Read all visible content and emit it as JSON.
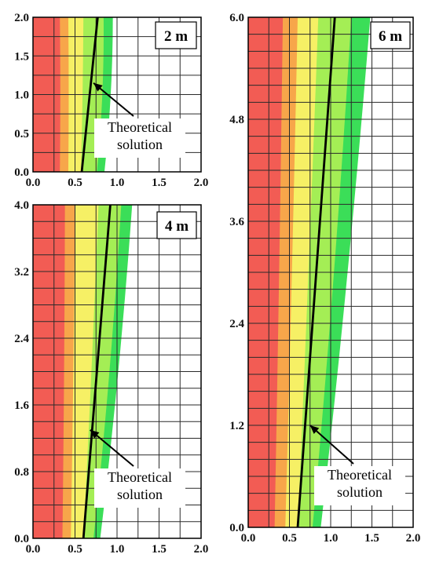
{
  "colors": {
    "red": "#f25c54",
    "orange": "#f7a64a",
    "yellow": "#f6f065",
    "lightgreen": "#a4ee55",
    "green": "#3bde58",
    "grid": "#2a2a2a",
    "line": "#000000"
  },
  "chart_data": [
    {
      "type": "heatmap",
      "title": "2 m",
      "xlabel": "",
      "ylabel": "",
      "xlim": [
        0,
        2.0
      ],
      "ylim": [
        0,
        2.0
      ],
      "xticks": [
        "0.0",
        "0.5",
        "1.0",
        "1.5",
        "2.0"
      ],
      "yticks": [
        "0.0",
        "0.5",
        "1.0",
        "1.5",
        "2.0"
      ],
      "grid": true,
      "contour_bands_x_at_bottom": [
        0.32,
        0.42,
        0.57,
        0.76,
        0.85
      ],
      "contour_bands_x_at_top": [
        0.32,
        0.42,
        0.6,
        0.84,
        0.95
      ],
      "theoretical_line": {
        "x": [
          0.58,
          0.77
        ],
        "y": [
          0.0,
          2.0
        ]
      },
      "annotation": {
        "lines": [
          "Theoretical",
          "solution"
        ],
        "arrow_to": [
          0.72,
          1.15
        ]
      }
    },
    {
      "type": "heatmap",
      "title": "4 m",
      "xlabel": "",
      "ylabel": "",
      "xlim": [
        0,
        2.0
      ],
      "ylim": [
        0,
        4.0
      ],
      "xticks": [
        "0.0",
        "0.5",
        "1.0",
        "1.5",
        "2.0"
      ],
      "yticks": [
        "0.0",
        "0.8",
        "1.6",
        "2.4",
        "3.2",
        "4.0"
      ],
      "grid": true,
      "contour_bands_x_at_bottom": [
        0.35,
        0.45,
        0.6,
        0.72,
        0.8
      ],
      "contour_bands_x_at_top": [
        0.38,
        0.5,
        0.78,
        1.05,
        1.18
      ],
      "theoretical_line": {
        "x": [
          0.6,
          0.92
        ],
        "y": [
          0.0,
          4.0
        ]
      },
      "annotation": {
        "lines": [
          "Theoretical",
          "solution"
        ],
        "arrow_to": [
          0.68,
          1.3
        ]
      }
    },
    {
      "type": "heatmap",
      "title": "6 m",
      "xlabel": "",
      "ylabel": "",
      "xlim": [
        0,
        2.0
      ],
      "ylim": [
        0,
        6.0
      ],
      "xticks": [
        "0.0",
        "0.5",
        "1.0",
        "1.5",
        "2.0"
      ],
      "yticks": [
        "0.0",
        "1.2",
        "2.4",
        "3.6",
        "4.8",
        "6.0"
      ],
      "grid": true,
      "contour_bands_x_at_bottom": [
        0.32,
        0.45,
        0.6,
        0.78,
        0.88
      ],
      "contour_bands_x_at_top": [
        0.42,
        0.6,
        0.85,
        1.25,
        1.48
      ],
      "theoretical_line": {
        "x": [
          0.6,
          1.05
        ],
        "y": [
          0.0,
          6.0
        ]
      },
      "annotation": {
        "lines": [
          "Theoretical",
          "solution"
        ],
        "arrow_to": [
          0.75,
          1.2
        ]
      }
    }
  ]
}
